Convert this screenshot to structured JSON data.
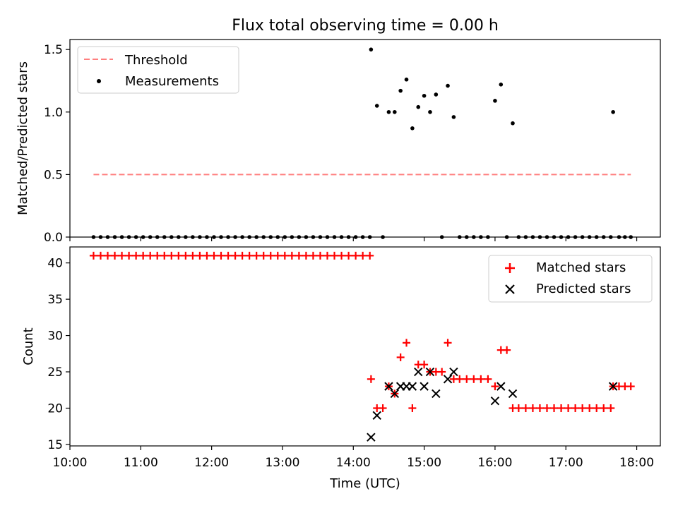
{
  "figure": {
    "title": "Flux total observing time = 0.00 h"
  },
  "chart_data": [
    {
      "type": "scatter",
      "panel": "top",
      "ylabel": "Matched/Predicted stars",
      "xlabel": "",
      "xlim": [
        "10:00",
        "18:20"
      ],
      "ylim": [
        0,
        1.58
      ],
      "yticks": [
        0.0,
        0.5,
        1.0,
        1.5
      ],
      "ytick_labels": [
        "0.0",
        "0.5",
        "1.0",
        "1.5"
      ],
      "xtick_values": [
        "10:00",
        "11:00",
        "12:00",
        "13:00",
        "14:00",
        "15:00",
        "16:00",
        "17:00",
        "18:00"
      ],
      "legend": {
        "placement": "upper left",
        "entries": [
          {
            "label": "Threshold",
            "color": "#ff7f7f",
            "marker": "dashed-line"
          },
          {
            "label": "Measurements",
            "color": "#000000",
            "marker": "dot"
          }
        ]
      },
      "threshold": {
        "name": "Threshold",
        "value": 0.5,
        "x_range": [
          "10:20",
          "17:55"
        ],
        "color": "#ff7f7f",
        "style": "dashed"
      },
      "series": [
        {
          "name": "Measurements",
          "color": "#000000",
          "marker": "dot",
          "x": [
            "10:20",
            "10:26",
            "10:32",
            "10:38",
            "10:44",
            "10:50",
            "10:56",
            "11:02",
            "11:08",
            "11:14",
            "11:20",
            "11:26",
            "11:32",
            "11:38",
            "11:44",
            "11:50",
            "11:56",
            "12:02",
            "12:08",
            "12:14",
            "12:20",
            "12:26",
            "12:32",
            "12:38",
            "12:44",
            "12:50",
            "12:56",
            "13:02",
            "13:08",
            "13:14",
            "13:20",
            "13:26",
            "13:32",
            "13:38",
            "13:44",
            "13:50",
            "13:56",
            "14:02",
            "14:08",
            "14:14",
            "14:15",
            "14:20",
            "14:25",
            "14:30",
            "14:35",
            "14:40",
            "14:45",
            "14:50",
            "14:55",
            "15:00",
            "15:05",
            "15:10",
            "15:15",
            "15:20",
            "15:25",
            "15:30",
            "15:36",
            "15:42",
            "15:48",
            "15:54",
            "16:00",
            "16:05",
            "16:10",
            "16:15",
            "16:20",
            "16:26",
            "16:32",
            "16:38",
            "16:44",
            "16:50",
            "16:56",
            "17:02",
            "17:08",
            "17:14",
            "17:20",
            "17:26",
            "17:32",
            "17:38",
            "17:40",
            "17:45",
            "17:50",
            "17:55"
          ],
          "y": [
            0,
            0,
            0,
            0,
            0,
            0,
            0,
            0,
            0,
            0,
            0,
            0,
            0,
            0,
            0,
            0,
            0,
            0,
            0,
            0,
            0,
            0,
            0,
            0,
            0,
            0,
            0,
            0,
            0,
            0,
            0,
            0,
            0,
            0,
            0,
            0,
            0,
            0,
            0,
            0,
            1.5,
            1.05,
            0,
            1.0,
            1.0,
            1.17,
            1.26,
            0.87,
            1.04,
            1.13,
            1.0,
            1.14,
            0,
            1.21,
            0.96,
            0,
            0,
            0,
            0,
            0,
            1.09,
            1.22,
            0,
            0.91,
            0,
            0,
            0,
            0,
            0,
            0,
            0,
            0,
            0,
            0,
            0,
            0,
            0,
            0,
            1.0,
            0,
            0,
            0
          ]
        }
      ]
    },
    {
      "type": "scatter",
      "panel": "bottom",
      "ylabel": "Count",
      "xlabel": "Time (UTC)",
      "xlim": [
        "10:00",
        "18:20"
      ],
      "ylim": [
        14.8,
        42.2
      ],
      "yticks": [
        15,
        20,
        25,
        30,
        35,
        40
      ],
      "ytick_labels": [
        "15",
        "20",
        "25",
        "30",
        "35",
        "40"
      ],
      "xtick_labels": [
        "10:00",
        "11:00",
        "12:00",
        "13:00",
        "14:00",
        "15:00",
        "16:00",
        "17:00",
        "18:00"
      ],
      "legend": {
        "placement": "upper right",
        "entries": [
          {
            "label": "Matched stars",
            "color": "#ff0000",
            "marker": "plus"
          },
          {
            "label": "Predicted stars",
            "color": "#000000",
            "marker": "x"
          }
        ]
      },
      "series": [
        {
          "name": "Matched stars",
          "color": "#ff0000",
          "marker": "plus",
          "x": [
            "10:20",
            "10:26",
            "10:32",
            "10:38",
            "10:44",
            "10:50",
            "10:56",
            "11:02",
            "11:08",
            "11:14",
            "11:20",
            "11:26",
            "11:32",
            "11:38",
            "11:44",
            "11:50",
            "11:56",
            "12:02",
            "12:08",
            "12:14",
            "12:20",
            "12:26",
            "12:32",
            "12:38",
            "12:44",
            "12:50",
            "12:56",
            "13:02",
            "13:08",
            "13:14",
            "13:20",
            "13:26",
            "13:32",
            "13:38",
            "13:44",
            "13:50",
            "13:56",
            "14:02",
            "14:08",
            "14:14",
            "14:15",
            "14:20",
            "14:25",
            "14:30",
            "14:35",
            "14:40",
            "14:45",
            "14:50",
            "14:55",
            "15:00",
            "15:05",
            "15:10",
            "15:15",
            "15:20",
            "15:25",
            "15:30",
            "15:36",
            "15:42",
            "15:48",
            "15:54",
            "16:00",
            "16:05",
            "16:10",
            "16:15",
            "16:20",
            "16:26",
            "16:32",
            "16:38",
            "16:44",
            "16:50",
            "16:56",
            "17:02",
            "17:08",
            "17:14",
            "17:20",
            "17:26",
            "17:32",
            "17:38",
            "17:40",
            "17:45",
            "17:50",
            "17:55"
          ],
          "y": [
            41,
            41,
            41,
            41,
            41,
            41,
            41,
            41,
            41,
            41,
            41,
            41,
            41,
            41,
            41,
            41,
            41,
            41,
            41,
            41,
            41,
            41,
            41,
            41,
            41,
            41,
            41,
            41,
            41,
            41,
            41,
            41,
            41,
            41,
            41,
            41,
            41,
            41,
            41,
            41,
            24,
            20,
            20,
            23,
            22,
            27,
            29,
            20,
            26,
            26,
            25,
            25,
            25,
            29,
            24,
            24,
            24,
            24,
            24,
            24,
            23,
            28,
            28,
            20,
            20,
            20,
            20,
            20,
            20,
            20,
            20,
            20,
            20,
            20,
            20,
            20,
            20,
            20,
            23,
            23,
            23,
            23
          ]
        },
        {
          "name": "Predicted stars",
          "color": "#000000",
          "marker": "x",
          "x": [
            "14:15",
            "14:20",
            "14:30",
            "14:35",
            "14:40",
            "14:45",
            "14:50",
            "14:55",
            "15:00",
            "15:05",
            "15:10",
            "15:20",
            "15:25",
            "16:00",
            "16:05",
            "16:15",
            "17:40"
          ],
          "y": [
            16,
            19,
            23,
            22,
            23,
            23,
            23,
            25,
            23,
            25,
            22,
            24,
            25,
            21,
            23,
            22,
            23
          ]
        }
      ]
    }
  ]
}
